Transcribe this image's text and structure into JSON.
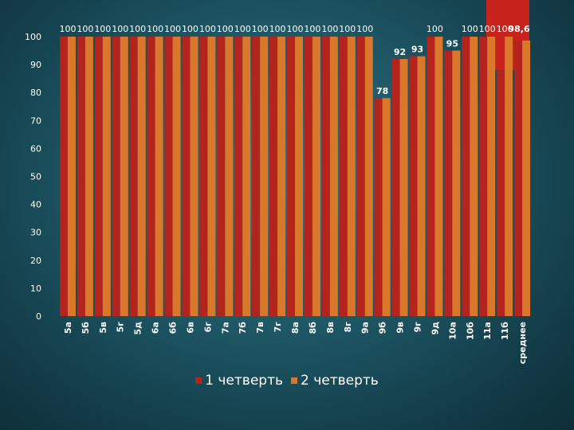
{
  "colors": {
    "series1": "#b5231d",
    "series2": "#d9782a",
    "accent": "#c8221c"
  },
  "chart_data": {
    "type": "bar",
    "title": "",
    "xlabel": "",
    "ylabel": "",
    "ylim": [
      0,
      100
    ],
    "yticks": [
      0,
      10,
      20,
      30,
      40,
      50,
      60,
      70,
      80,
      90,
      100
    ],
    "grid": false,
    "legend_position": "bottom",
    "categories": [
      "5а",
      "5б",
      "5в",
      "5г",
      "5д",
      "6а",
      "6б",
      "6в",
      "6г",
      "7а",
      "7б",
      "7в",
      "7г",
      "8а",
      "8б",
      "8в",
      "8г",
      "9а",
      "9б",
      "9в",
      "9г",
      "9д",
      "10а",
      "10б",
      "11а",
      "11б",
      "среднее"
    ],
    "series": [
      {
        "name": "1 четверть",
        "values": [
          100,
          100,
          100,
          100,
          100,
          100,
          100,
          100,
          100,
          100,
          100,
          100,
          100,
          100,
          100,
          100,
          100,
          100,
          78,
          92,
          93,
          100,
          95,
          100,
          100,
          88,
          98.6
        ]
      },
      {
        "name": "2 четверть",
        "values": [
          100,
          100,
          100,
          100,
          100,
          100,
          100,
          100,
          100,
          100,
          100,
          100,
          100,
          100,
          100,
          100,
          100,
          100,
          78,
          92,
          93,
          100,
          95,
          100,
          100,
          100,
          98.6
        ]
      }
    ],
    "data_labels": [
      "100",
      "100",
      "100",
      "100",
      "100",
      "100",
      "100",
      "100",
      "100",
      "100",
      "100",
      "100",
      "100",
      "100",
      "100",
      "100",
      "100",
      "100",
      "78",
      "92",
      "93",
      "100",
      "95",
      "100",
      "100",
      "100",
      "98,6"
    ]
  }
}
